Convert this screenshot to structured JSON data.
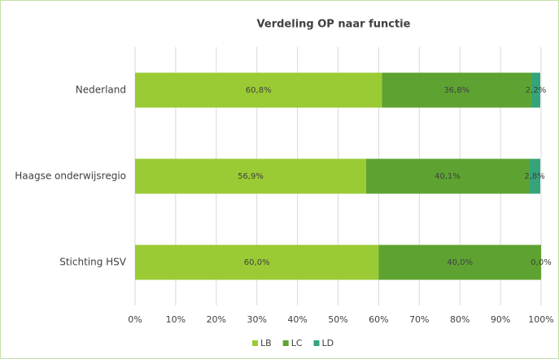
{
  "chart_data": {
    "type": "bar",
    "orientation": "horizontal",
    "stacked": true,
    "title": "Verdeling OP naar functie",
    "categories": [
      "Nederland",
      "Haagse onderwijsregio",
      "Stichting HSV"
    ],
    "series": [
      {
        "name": "LB",
        "color": "#9acb34",
        "values": [
          60.8,
          56.9,
          60.0
        ],
        "value_labels": [
          "60,8%",
          "56,9%",
          "60,0%"
        ]
      },
      {
        "name": "LC",
        "color": "#5ea331",
        "values": [
          36.8,
          40.1,
          40.0
        ],
        "value_labels": [
          "36,8%",
          "40,1%",
          "40,0%"
        ]
      },
      {
        "name": "LD",
        "color": "#35a47a",
        "values": [
          2.2,
          2.8,
          0.0
        ],
        "value_labels": [
          "2,2%",
          "2,8%",
          "0,0%"
        ]
      }
    ],
    "xlim": [
      0,
      100
    ],
    "xticks": [
      {
        "value": 0,
        "label": "0%"
      },
      {
        "value": 10,
        "label": "10%"
      },
      {
        "value": 20,
        "label": "20%"
      },
      {
        "value": 30,
        "label": "30%"
      },
      {
        "value": 40,
        "label": "40%"
      },
      {
        "value": 50,
        "label": "50%"
      },
      {
        "value": 60,
        "label": "60%"
      },
      {
        "value": 70,
        "label": "70%"
      },
      {
        "value": 80,
        "label": "80%"
      },
      {
        "value": 90,
        "label": "90%"
      },
      {
        "value": 100,
        "label": "100%"
      }
    ],
    "grid": true,
    "legend": "bottom"
  }
}
